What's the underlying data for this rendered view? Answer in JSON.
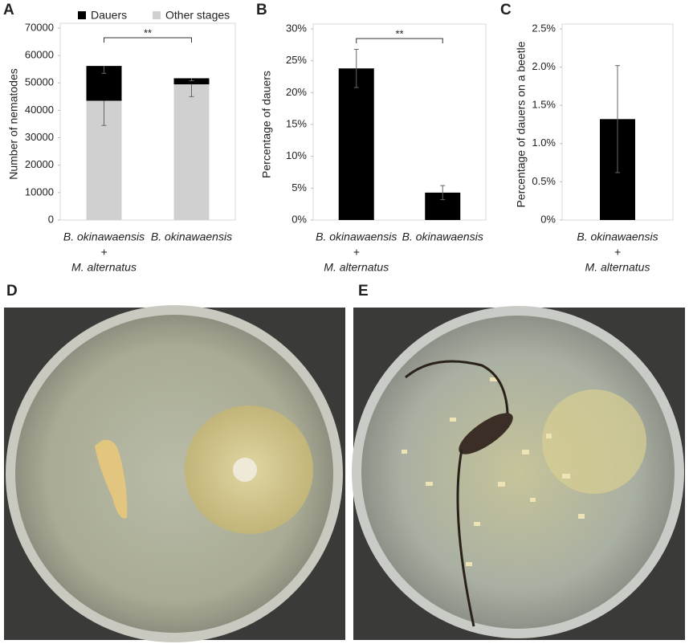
{
  "chart_data": [
    {
      "type": "bar",
      "panel": "A",
      "ylabel": "Number of nematodes",
      "stacked": true,
      "error_bars": "down",
      "categories": [
        [
          "B. okinawaensis",
          "+",
          "M. alternatus"
        ],
        [
          "B. okinawaensis"
        ]
      ],
      "series": [
        {
          "name": "Dauers",
          "color": "#000000",
          "values": [
            12700,
            2200
          ],
          "errors": [
            2700,
            900
          ]
        },
        {
          "name": "Other stages",
          "color": "#d0d0d0",
          "values": [
            43500,
            49500
          ],
          "errors": [
            9000,
            4500
          ]
        }
      ],
      "ylim": [
        0,
        70000
      ],
      "yticks": [
        0,
        10000,
        20000,
        30000,
        40000,
        50000,
        60000,
        70000
      ],
      "significance": "**"
    },
    {
      "type": "bar",
      "panel": "B",
      "ylabel": "Percentage of dauers",
      "error_bars": "both",
      "categories": [
        [
          "B. okinawaensis",
          "+",
          "M. alternatus"
        ],
        [
          "B. okinawaensis"
        ]
      ],
      "values": [
        23.8,
        4.3
      ],
      "errors": [
        3.0,
        1.1
      ],
      "color": "#000000",
      "ylim": [
        0,
        30
      ],
      "yticks": [
        {
          "value": 0,
          "label": "0%"
        },
        {
          "value": 5,
          "label": "5%"
        },
        {
          "value": 10,
          "label": "10%"
        },
        {
          "value": 15,
          "label": "15%"
        },
        {
          "value": 20,
          "label": "20%"
        },
        {
          "value": 25,
          "label": "25%"
        },
        {
          "value": 30,
          "label": "30%"
        }
      ],
      "significance": "**"
    },
    {
      "type": "bar",
      "panel": "C",
      "ylabel": "Percentage of dauers on a beetle",
      "error_bars": "both",
      "categories": [
        [
          "B. okinawaensis",
          "+",
          "M. alternatus"
        ]
      ],
      "values": [
        1.32
      ],
      "errors": [
        0.7
      ],
      "color": "#000000",
      "ylim": [
        0,
        2.5
      ],
      "yticks": [
        {
          "value": 0,
          "label": "0%"
        },
        {
          "value": 0.5,
          "label": "0.5%"
        },
        {
          "value": 1.0,
          "label": "1.0%"
        },
        {
          "value": 1.5,
          "label": "1.5%"
        },
        {
          "value": 2.0,
          "label": "2.0%"
        },
        {
          "value": 2.5,
          "label": "2.5%"
        }
      ]
    }
  ],
  "photo_panels": [
    {
      "label": "D"
    },
    {
      "label": "E"
    }
  ]
}
